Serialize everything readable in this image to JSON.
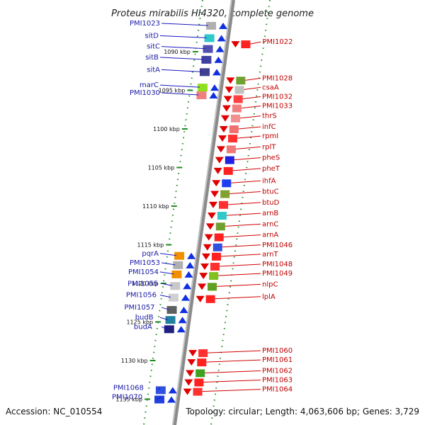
{
  "title": "Proteus mirabilis HI4320, complete genome",
  "footer": {
    "accession": "Accession: NC_010554",
    "summary": "Topology: circular; Length: 4,063,606 bp; Genes: 3,729"
  },
  "axis": {
    "unit": "kbp",
    "ticks": [
      {
        "pos": 1090,
        "label": "1090 kbp"
      },
      {
        "pos": 1095,
        "label": "1095 kbp"
      },
      {
        "pos": 1100,
        "label": "1100 kbp"
      },
      {
        "pos": 1105,
        "label": "1105 kbp"
      },
      {
        "pos": 1110,
        "label": "1110 kbp"
      },
      {
        "pos": 1115,
        "label": "1115 kbp"
      },
      {
        "pos": 1120,
        "label": "1120 kbp"
      },
      {
        "pos": 1125,
        "label": "1125 kbp"
      },
      {
        "pos": 1130,
        "label": "1130 kbp"
      },
      {
        "pos": 1135,
        "label": "1135 kbp"
      }
    ]
  },
  "genes_left": [
    {
      "name": "PMI1023",
      "pos": 1086.6
    },
    {
      "name": "sitD",
      "pos": 1088.2
    },
    {
      "name": "sitC",
      "pos": 1089.6
    },
    {
      "name": "sitB",
      "pos": 1091.0
    },
    {
      "name": "sitA",
      "pos": 1092.6
    },
    {
      "name": "marC",
      "pos": 1094.6
    },
    {
      "name": "PMI1030",
      "pos": 1095.6
    },
    {
      "name": "pqrA",
      "pos": 1116.4
    },
    {
      "name": "PMI1053",
      "pos": 1117.6
    },
    {
      "name": "PMI1054",
      "pos": 1118.8
    },
    {
      "name": "PMI1055",
      "pos": 1120.3
    },
    {
      "name": "PMI1056",
      "pos": 1121.8
    },
    {
      "name": "PMI1057",
      "pos": 1123.4
    },
    {
      "name": "budB",
      "pos": 1124.7
    },
    {
      "name": "budA",
      "pos": 1125.9
    },
    {
      "name": "PMI1068",
      "pos": 1133.8
    },
    {
      "name": "PMI1070",
      "pos": 1135.0
    }
  ],
  "genes_right": [
    {
      "name": "PMI1022",
      "pos": 1089.0
    },
    {
      "name": "PMI1028",
      "pos": 1093.7
    },
    {
      "name": "csaA",
      "pos": 1094.9
    },
    {
      "name": "PMI1032",
      "pos": 1096.1
    },
    {
      "name": "PMI1033",
      "pos": 1097.3
    },
    {
      "name": "thrS",
      "pos": 1098.6
    },
    {
      "name": "infC",
      "pos": 1100.0
    },
    {
      "name": "rpmI",
      "pos": 1101.2
    },
    {
      "name": "rplT",
      "pos": 1102.6
    },
    {
      "name": "pheS",
      "pos": 1104.0
    },
    {
      "name": "pheT",
      "pos": 1105.4
    },
    {
      "name": "ihfA",
      "pos": 1107.0
    },
    {
      "name": "btuC",
      "pos": 1108.4
    },
    {
      "name": "btuD",
      "pos": 1109.8
    },
    {
      "name": "arnB",
      "pos": 1111.2
    },
    {
      "name": "arnC",
      "pos": 1112.6
    },
    {
      "name": "arnA",
      "pos": 1114.0
    },
    {
      "name": "PMI1046",
      "pos": 1115.3
    },
    {
      "name": "arnT",
      "pos": 1116.5
    },
    {
      "name": "PMI1048",
      "pos": 1117.8
    },
    {
      "name": "PMI1049",
      "pos": 1119.0
    },
    {
      "name": "nlpC",
      "pos": 1120.4
    },
    {
      "name": "lplA",
      "pos": 1122.0
    },
    {
      "name": "PMI1060",
      "pos": 1129.0
    },
    {
      "name": "PMI1061",
      "pos": 1130.2
    },
    {
      "name": "PMI1062",
      "pos": 1131.6
    },
    {
      "name": "PMI1063",
      "pos": 1132.8
    },
    {
      "name": "PMI1064",
      "pos": 1134.0
    }
  ],
  "colors": {
    "left_label": "#1a1aa8",
    "right_label": "#c00000",
    "axis_line": "#888888",
    "tick_green": "#1f8a1f",
    "forward_arrow": "#1030e0",
    "reverse_arrow": "#e00000"
  }
}
